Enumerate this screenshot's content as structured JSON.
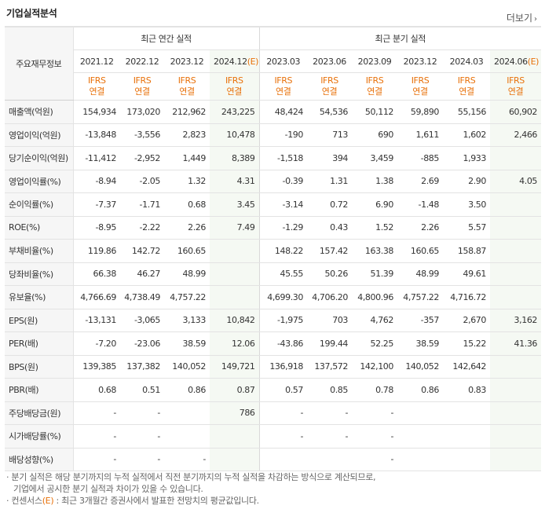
{
  "title": "기업실적분석",
  "more_label": "더보기",
  "corner_label": "주요재무정보",
  "annual_header": "최근 연간 실적",
  "quarter_header": "최근 분기 실적",
  "annual_periods": [
    "2021.12",
    "2022.12",
    "2023.12",
    "2024.12(E)"
  ],
  "quarter_periods": [
    "2023.03",
    "2023.06",
    "2023.09",
    "2023.12",
    "2024.03",
    "2024.06(E)"
  ],
  "basis_top": "IFRS",
  "basis_bottom": "연결",
  "rows": [
    {
      "label": "매출액(억원)",
      "values": [
        "154,934",
        "173,020",
        "212,962",
        "243,225",
        "48,424",
        "54,536",
        "50,112",
        "59,890",
        "55,156",
        "60,902"
      ]
    },
    {
      "label": "영업이익(억원)",
      "values": [
        "-13,848",
        "-3,556",
        "2,823",
        "10,478",
        "-190",
        "713",
        "690",
        "1,611",
        "1,602",
        "2,466"
      ]
    },
    {
      "label": "당기순이익(억원)",
      "values": [
        "-11,412",
        "-2,952",
        "1,449",
        "8,389",
        "-1,518",
        "394",
        "3,459",
        "-885",
        "1,933",
        ""
      ]
    },
    {
      "label": "영업이익률(%)",
      "values": [
        "-8.94",
        "-2.05",
        "1.32",
        "4.31",
        "-0.39",
        "1.31",
        "1.38",
        "2.69",
        "2.90",
        "4.05"
      ]
    },
    {
      "label": "순이익률(%)",
      "values": [
        "-7.37",
        "-1.71",
        "0.68",
        "3.45",
        "-3.14",
        "0.72",
        "6.90",
        "-1.48",
        "3.50",
        ""
      ]
    },
    {
      "label": "ROE(%)",
      "values": [
        "-8.95",
        "-2.22",
        "2.26",
        "7.49",
        "-1.29",
        "0.43",
        "1.52",
        "2.26",
        "5.57",
        ""
      ]
    },
    {
      "label": "부채비율(%)",
      "values": [
        "119.86",
        "142.72",
        "160.65",
        "",
        "148.22",
        "157.42",
        "163.38",
        "160.65",
        "158.87",
        ""
      ]
    },
    {
      "label": "당좌비율(%)",
      "values": [
        "66.38",
        "46.27",
        "48.99",
        "",
        "45.55",
        "50.26",
        "51.39",
        "48.99",
        "49.61",
        ""
      ]
    },
    {
      "label": "유보율(%)",
      "values": [
        "4,766.69",
        "4,738.49",
        "4,757.22",
        "",
        "4,699.30",
        "4,706.20",
        "4,800.96",
        "4,757.22",
        "4,716.72",
        ""
      ]
    },
    {
      "label": "EPS(원)",
      "values": [
        "-13,131",
        "-3,065",
        "3,133",
        "10,842",
        "-1,975",
        "703",
        "4,762",
        "-357",
        "2,670",
        "3,162"
      ]
    },
    {
      "label": "PER(배)",
      "values": [
        "-7.20",
        "-23.06",
        "38.59",
        "12.06",
        "-43.86",
        "199.44",
        "52.25",
        "38.59",
        "15.22",
        "41.36"
      ]
    },
    {
      "label": "BPS(원)",
      "values": [
        "139,385",
        "137,382",
        "140,052",
        "149,721",
        "136,918",
        "137,572",
        "142,100",
        "140,052",
        "142,642",
        ""
      ]
    },
    {
      "label": "PBR(배)",
      "values": [
        "0.68",
        "0.51",
        "0.86",
        "0.87",
        "0.57",
        "0.85",
        "0.78",
        "0.86",
        "0.83",
        ""
      ]
    },
    {
      "label": "주당배당금(원)",
      "values": [
        "-",
        "-",
        "",
        "786",
        "-",
        "-",
        "-",
        "",
        "",
        ""
      ]
    },
    {
      "label": "시가배당률(%)",
      "values": [
        "-",
        "-",
        "",
        "",
        "-",
        "-",
        "-",
        "",
        "",
        ""
      ]
    },
    {
      "label": "배당성향(%)",
      "values": [
        "-",
        "-",
        "-",
        "",
        "",
        "",
        "-",
        "",
        "",
        ""
      ]
    }
  ],
  "notes": [
    "· 분기 실적은 해당 분기까지의 누적 실적에서 직전 분기까지의 누적 실적을 차감하는 방식으로 계산되므로,",
    "  기업에서 공시한 분기 실적과 차이가 있을 수 있습니다.",
    "· 컨센서스(E) : 최근 3개월간 증권사에서 발표한 전망치의 평균값입니다."
  ],
  "colors": {
    "negative": "#e02020",
    "ifrs": "#e8710a",
    "estimate_bg": "#f5f9f3"
  }
}
